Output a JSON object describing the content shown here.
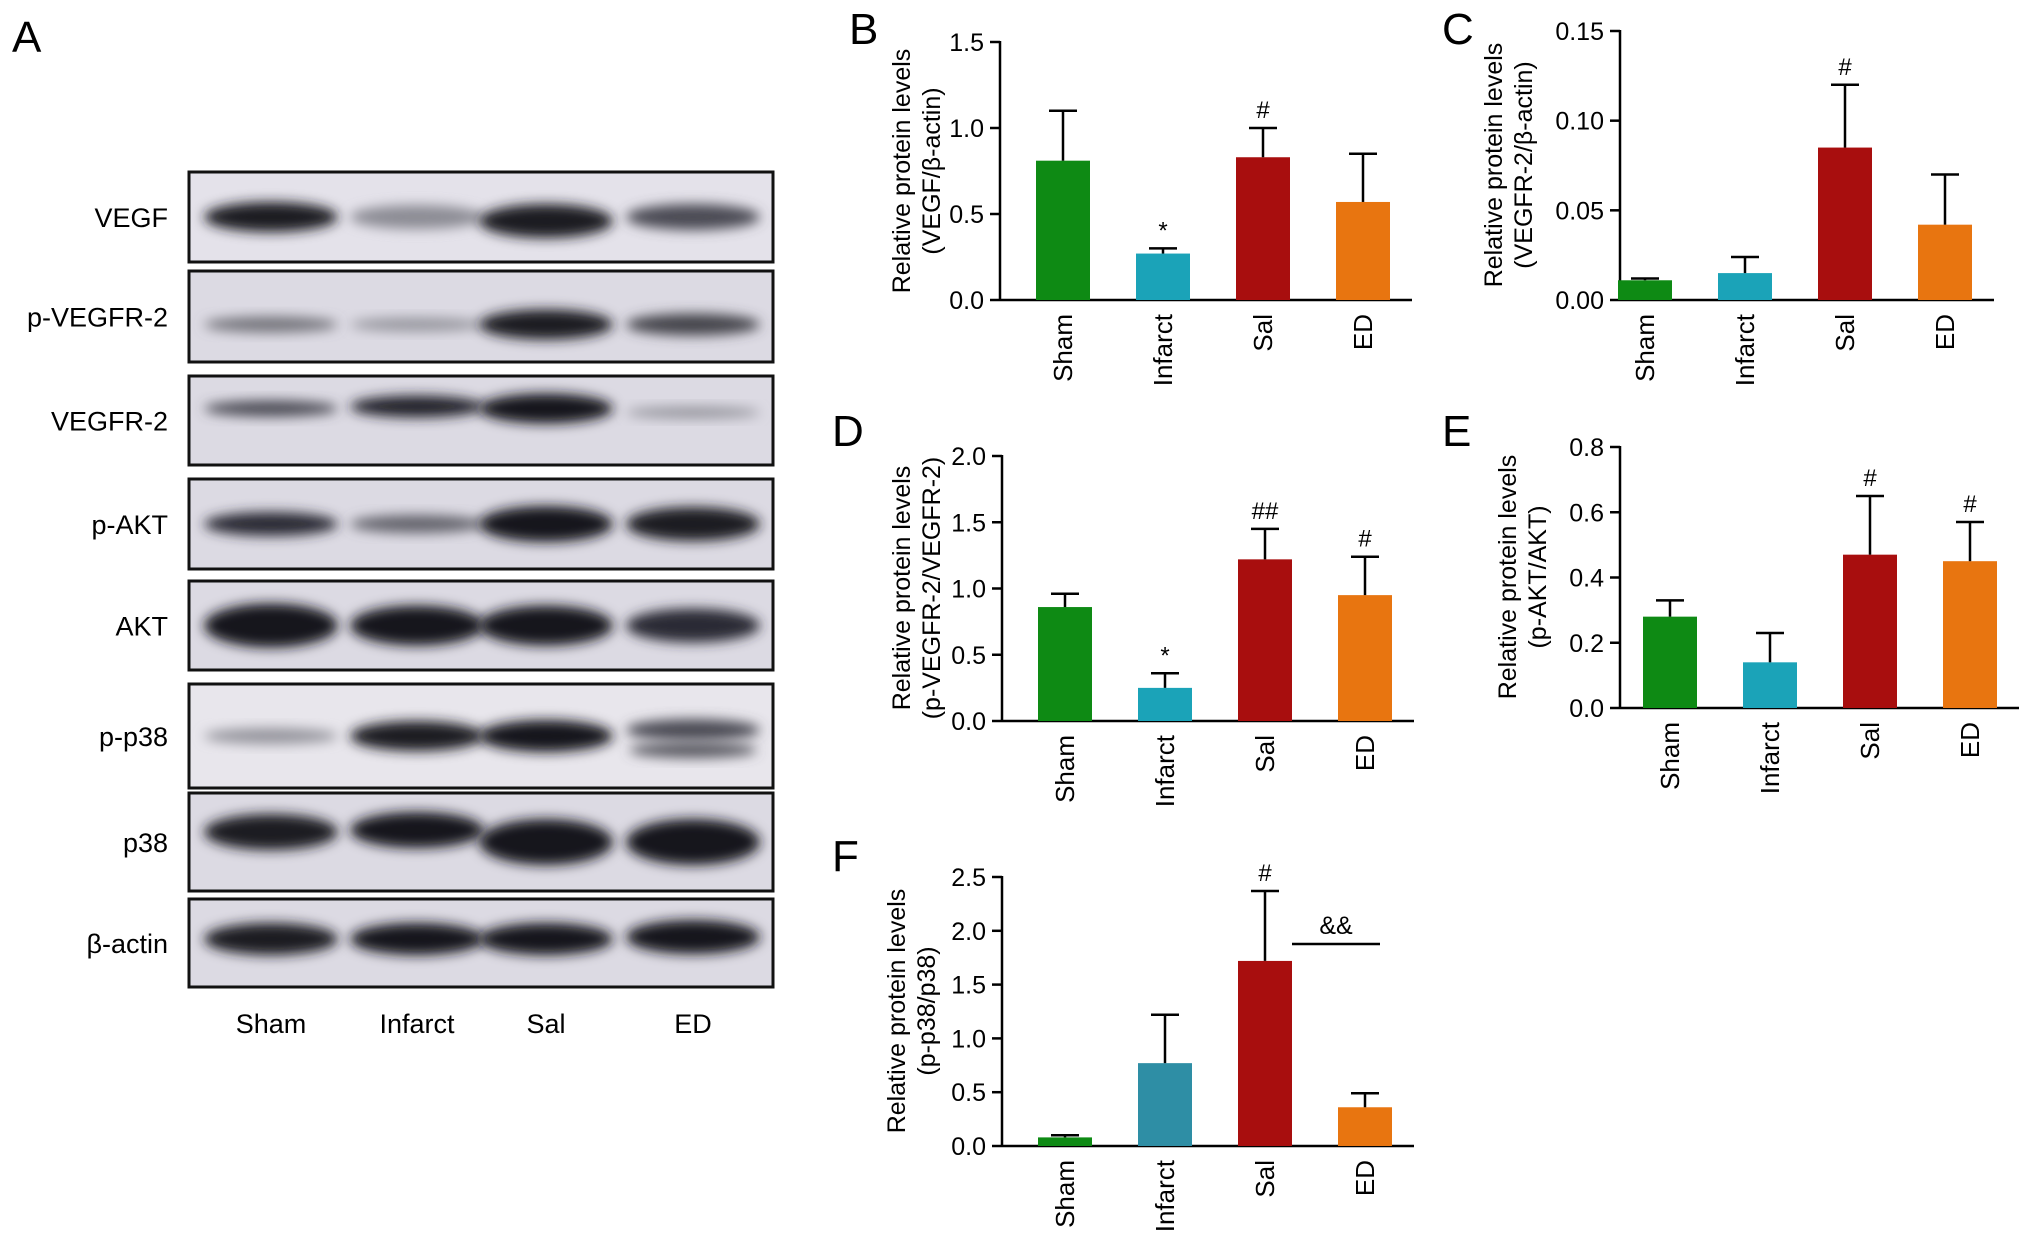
{
  "colors": {
    "sham": "#0e8a14",
    "infract": "#1ba3b8",
    "infract_f": "#2e8ea5",
    "sal": "#a80e0e",
    "ed": "#e87510",
    "axis": "#000000"
  },
  "blot": {
    "panel_label": "A",
    "rows": [
      "VEGF",
      "p-VEGFR-2",
      "VEGFR-2",
      "p-AKT",
      "AKT",
      "p-p38",
      "p38",
      "β-actin"
    ],
    "lanes": [
      "Sham",
      "Infarct",
      "Sal",
      "ED"
    ]
  },
  "chart_data": [
    {
      "panel": "B",
      "type": "bar",
      "categories": [
        "Sham",
        "Infarct",
        "Sal",
        "ED"
      ],
      "values": [
        0.81,
        0.27,
        0.83,
        0.57
      ],
      "errors": [
        0.29,
        0.03,
        0.17,
        0.28
      ],
      "annotations": [
        "",
        "*",
        "#",
        ""
      ],
      "ylabel": [
        "Relative protein levels",
        "(VEGF/β-actin)"
      ],
      "ylim": [
        0,
        1.5
      ],
      "ticks": [
        0,
        0.5,
        1.0,
        1.5
      ],
      "tick_labels": [
        "0.0",
        "0.5",
        "1.0",
        "1.5"
      ]
    },
    {
      "panel": "C",
      "type": "bar",
      "categories": [
        "Sham",
        "Infarct",
        "Sal",
        "ED"
      ],
      "values": [
        0.011,
        0.015,
        0.085,
        0.042
      ],
      "errors": [
        0.001,
        0.009,
        0.035,
        0.028
      ],
      "annotations": [
        "",
        "",
        "#",
        ""
      ],
      "ylabel": [
        "Relative protein levels",
        "(VEGFR-2/β-actin)"
      ],
      "ylim": [
        0,
        0.15
      ],
      "ticks": [
        0,
        0.05,
        0.1,
        0.15
      ],
      "tick_labels": [
        "0.00",
        "0.05",
        "0.10",
        "0.15"
      ]
    },
    {
      "panel": "D",
      "type": "bar",
      "categories": [
        "Sham",
        "Infarct",
        "Sal",
        "ED"
      ],
      "values": [
        0.86,
        0.25,
        1.22,
        0.95
      ],
      "errors": [
        0.1,
        0.11,
        0.23,
        0.29
      ],
      "annotations": [
        "",
        "*",
        "##",
        "#"
      ],
      "ylabel": [
        "Relative protein levels",
        "(p-VEGFR-2/VEGFR-2)"
      ],
      "ylim": [
        0,
        2.0
      ],
      "ticks": [
        0,
        0.5,
        1.0,
        1.5,
        2.0
      ],
      "tick_labels": [
        "0.0",
        "0.5",
        "1.0",
        "1.5",
        "2.0"
      ]
    },
    {
      "panel": "E",
      "type": "bar",
      "categories": [
        "Sham",
        "Infarct",
        "Sal",
        "ED"
      ],
      "values": [
        0.28,
        0.14,
        0.47,
        0.45
      ],
      "errors": [
        0.05,
        0.09,
        0.18,
        0.12
      ],
      "annotations": [
        "",
        "",
        "#",
        "#"
      ],
      "ylabel": [
        "Relative protein levels",
        "(p-AKT/AKT)"
      ],
      "ylim": [
        0,
        0.8
      ],
      "ticks": [
        0,
        0.2,
        0.4,
        0.6,
        0.8
      ],
      "tick_labels": [
        "0.0",
        "0.2",
        "0.4",
        "0.6",
        "0.8"
      ]
    },
    {
      "panel": "F",
      "type": "bar",
      "categories": [
        "Sham",
        "Infarct",
        "Sal",
        "ED"
      ],
      "values": [
        0.08,
        0.77,
        1.72,
        0.36
      ],
      "errors": [
        0.02,
        0.45,
        0.65,
        0.13
      ],
      "annotations": [
        "",
        "",
        "#",
        ""
      ],
      "bracket_label": "&&",
      "ylabel": [
        "Relative protein levels",
        "(p-p38/p38)"
      ],
      "ylim": [
        0,
        2.5
      ],
      "ticks": [
        0,
        0.5,
        1.0,
        1.5,
        2.0,
        2.5
      ],
      "tick_labels": [
        "0.0",
        "0.5",
        "1.0",
        "1.5",
        "2.0",
        "2.5"
      ]
    }
  ]
}
